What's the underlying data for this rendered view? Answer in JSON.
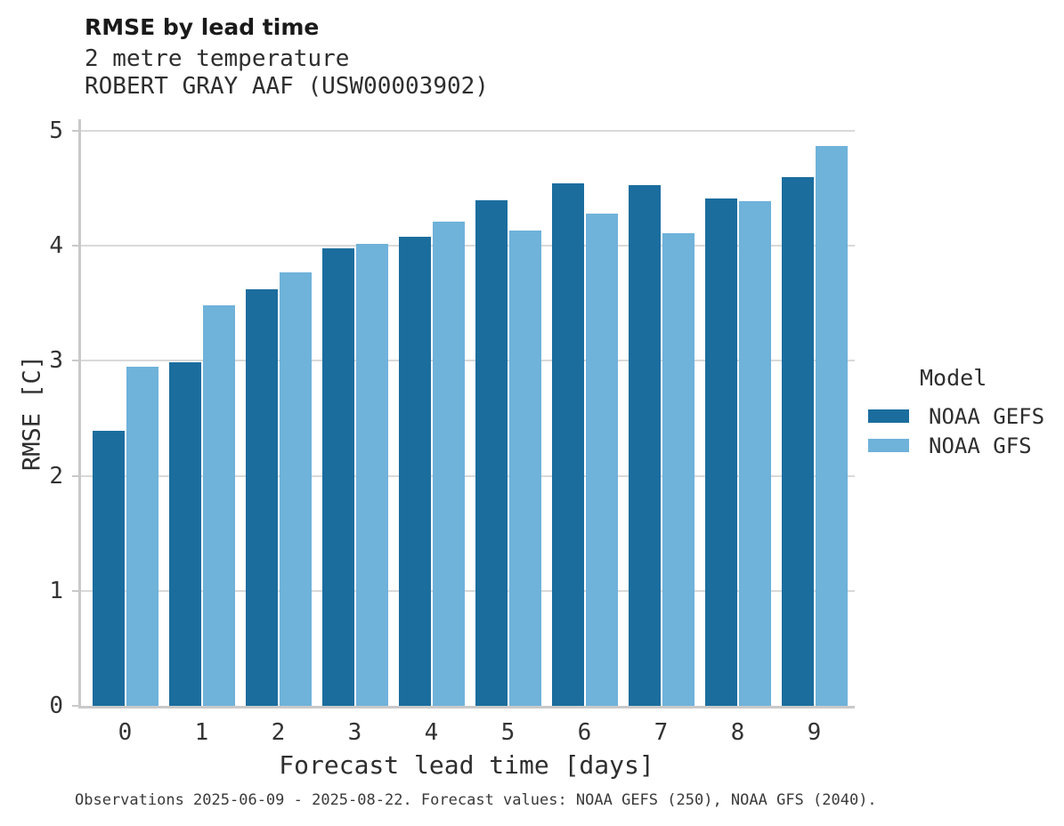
{
  "header": {
    "title": "RMSE by lead time",
    "subtitle_lines": [
      "2 metre temperature",
      "ROBERT GRAY AAF (USW00003902)"
    ]
  },
  "legend": {
    "title": "Model",
    "entries": [
      {
        "label": "NOAA GEFS",
        "color": "#1b6d9e"
      },
      {
        "label": "NOAA GFS",
        "color": "#6fb2da"
      }
    ]
  },
  "footer": {
    "text": "Observations 2025-06-09 - 2025-08-22. Forecast values: NOAA GEFS (250), NOAA GFS (2040)."
  },
  "chart_data": {
    "type": "bar",
    "title": "RMSE by lead time",
    "subtitle": "2 metre temperature — ROBERT GRAY AAF (USW00003902)",
    "categories": [
      "0",
      "1",
      "2",
      "3",
      "4",
      "5",
      "6",
      "7",
      "8",
      "9"
    ],
    "series": [
      {
        "name": "NOAA GEFS",
        "color": "#1b6d9e",
        "values": [
          2.39,
          2.99,
          3.62,
          3.98,
          4.08,
          4.4,
          4.54,
          4.53,
          4.41,
          4.6
        ]
      },
      {
        "name": "NOAA GFS",
        "color": "#6fb2da",
        "values": [
          2.95,
          3.48,
          3.77,
          4.02,
          4.21,
          4.13,
          4.28,
          4.11,
          4.39,
          4.87
        ]
      }
    ],
    "xlabel": "Forecast lead time [days]",
    "ylabel": "RMSE [C]",
    "ylim": [
      0,
      5
    ],
    "yticks": [
      0,
      1,
      2,
      3,
      4,
      5
    ],
    "grid": true,
    "grid_color": "#d9d9d9",
    "legend_title": "Model",
    "legend_position": "right"
  }
}
